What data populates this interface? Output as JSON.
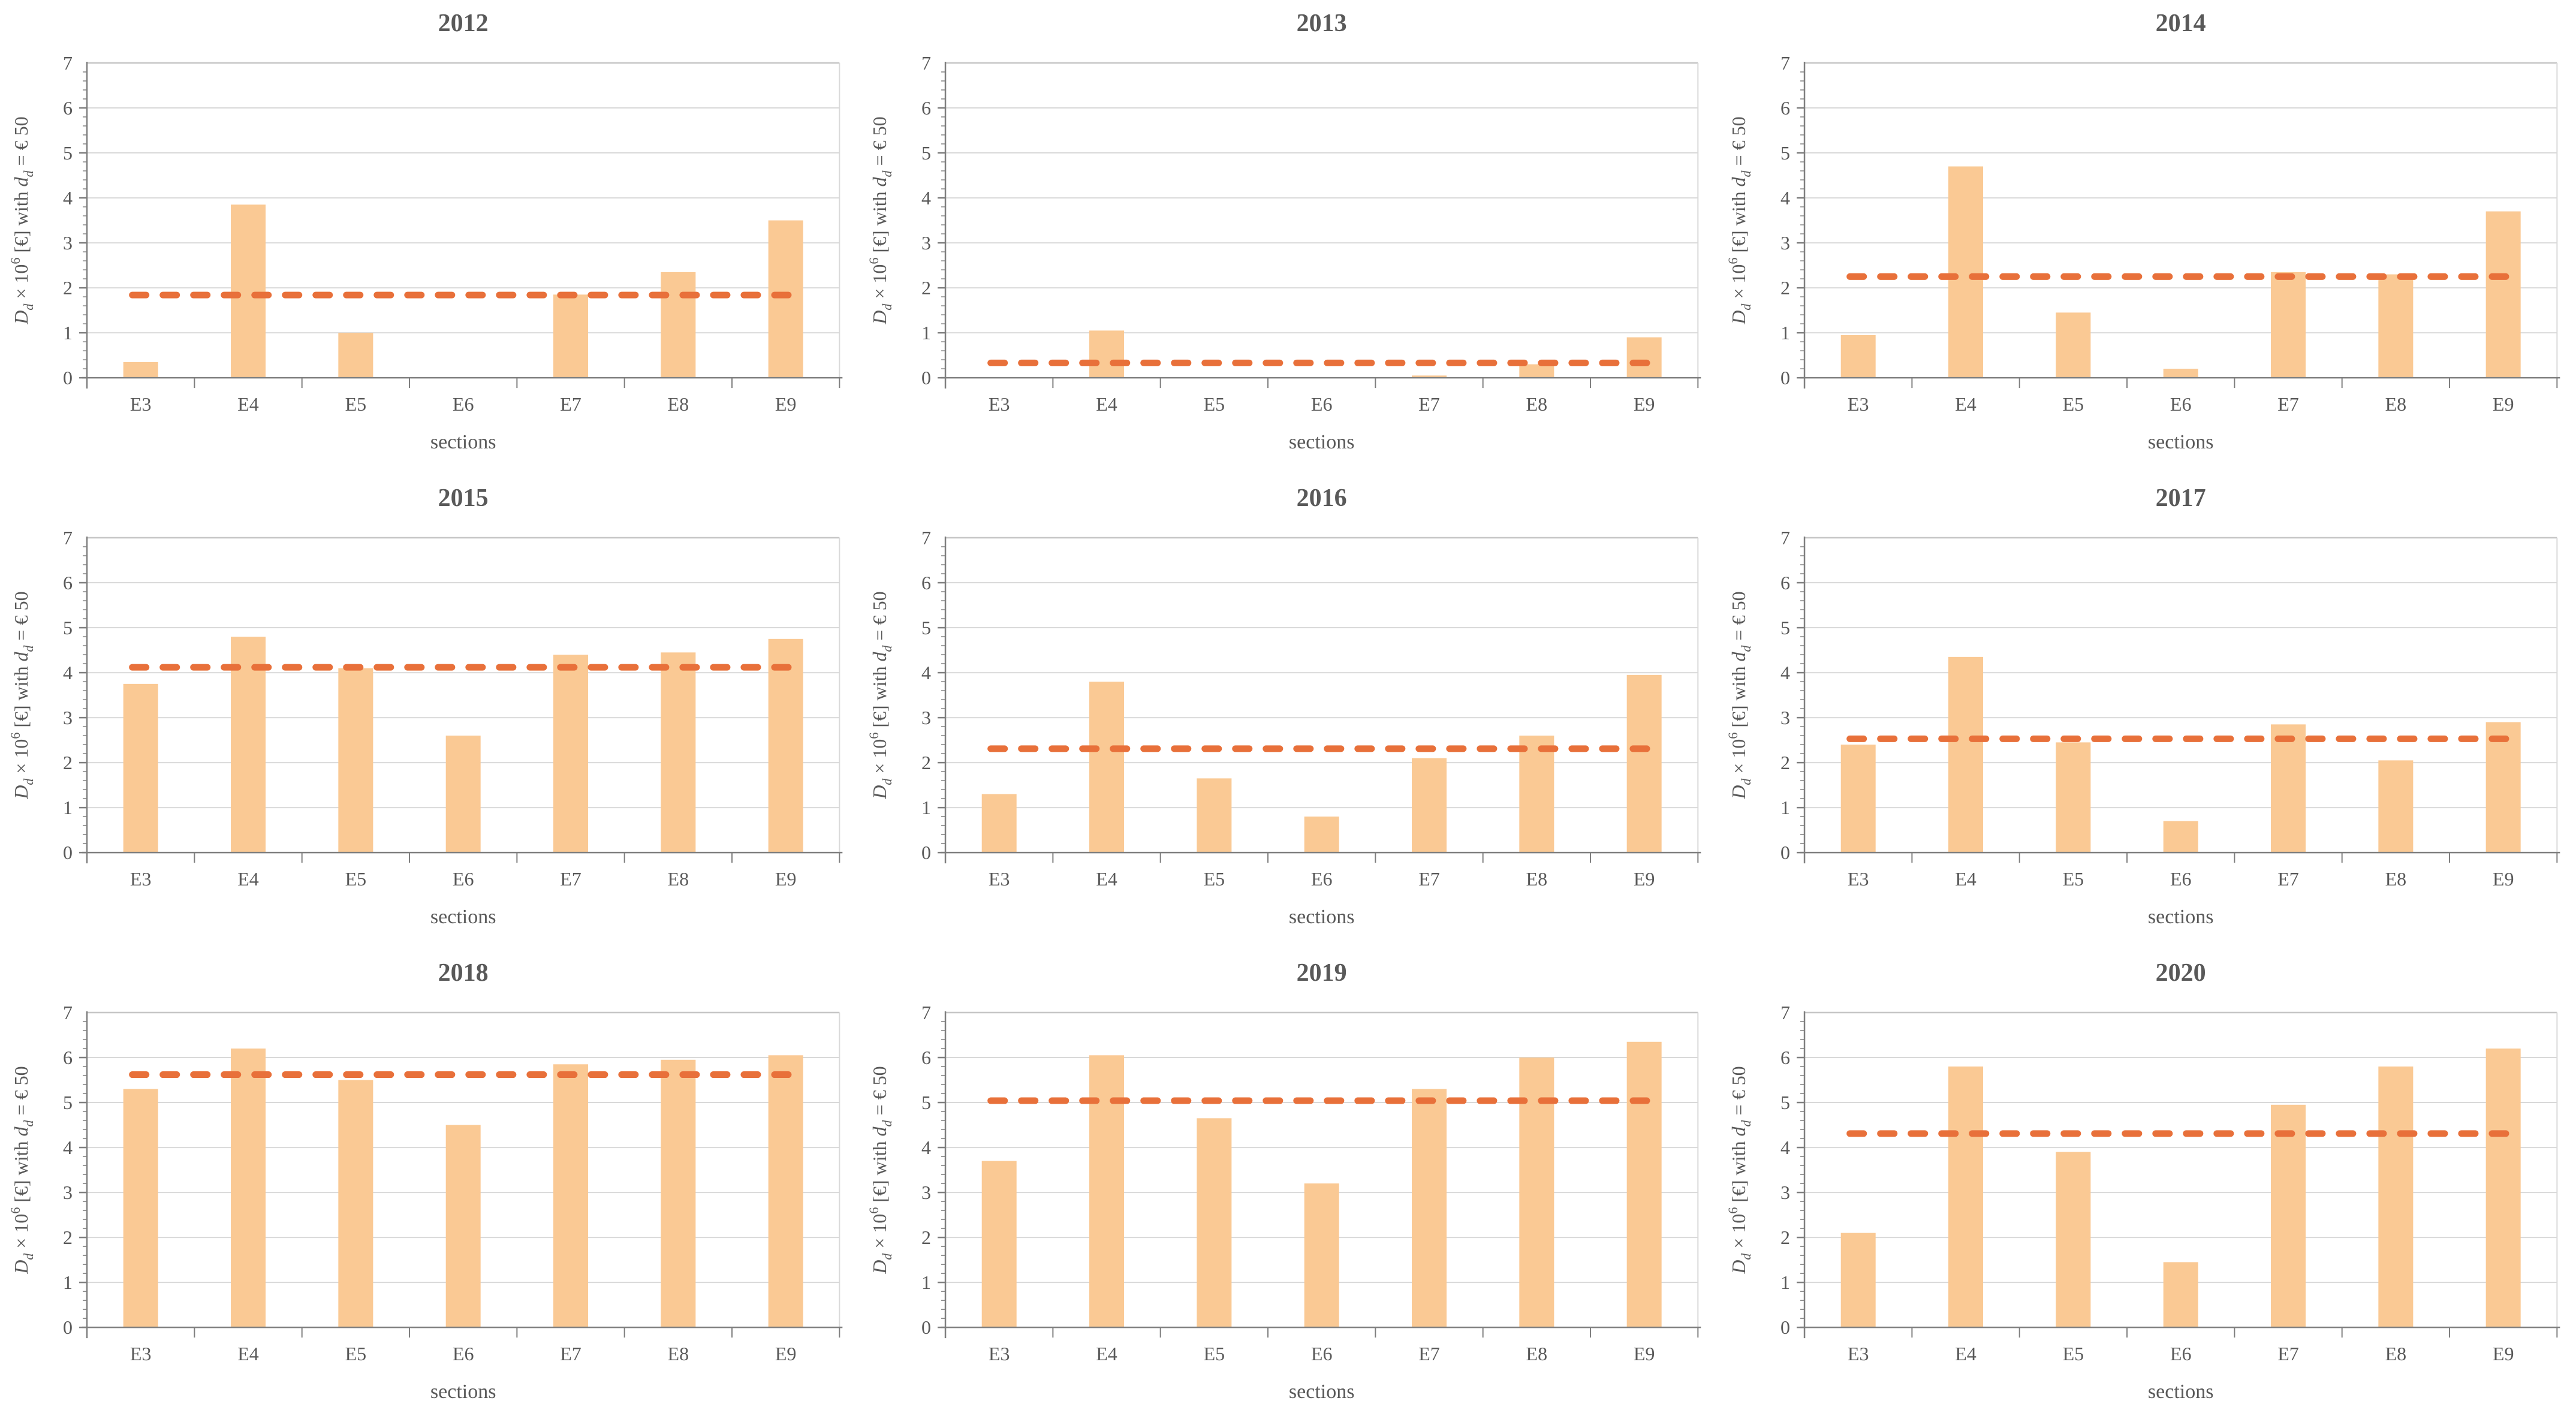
{
  "figure": {
    "xlabel": "sections",
    "ylabel": "D_d × 10^6 [€] with d_d = € 50",
    "ylabel_parts": [
      {
        "t": "D",
        "style": "italic"
      },
      {
        "t": "d",
        "style": "sub-italic"
      },
      {
        "t": " × 10",
        "style": "normal"
      },
      {
        "t": "6",
        "style": "sup"
      },
      {
        "t": " [€] with ",
        "style": "normal"
      },
      {
        "t": "d",
        "style": "italic"
      },
      {
        "t": "d",
        "style": "sub-italic"
      },
      {
        "t": " = € 50",
        "style": "normal"
      }
    ],
    "categories": [
      "E3",
      "E4",
      "E5",
      "E6",
      "E7",
      "E8",
      "E9"
    ],
    "ylim": [
      0,
      7
    ],
    "yticks": [
      0,
      1,
      2,
      3,
      4,
      5,
      6,
      7
    ],
    "legend": "none",
    "grid": "horizontal",
    "colors": {
      "bar": "#FAC994",
      "mean_line": "#E8703A",
      "text": "#595959",
      "grid_line": "#D9D9D9",
      "axis": "#7F7F7F",
      "border": "#C6C6C6"
    }
  },
  "chart_data": [
    {
      "type": "bar",
      "title": "2012",
      "categories": [
        "E3",
        "E4",
        "E5",
        "E6",
        "E7",
        "E8",
        "E9"
      ],
      "values": [
        0.35,
        3.85,
        1.0,
        0.0,
        1.85,
        2.35,
        3.5
      ],
      "mean_line": 1.84,
      "xlabel": "sections",
      "ylabel": "D_d × 10^6 [€] with d_d = € 50",
      "ylim": [
        0,
        7
      ]
    },
    {
      "type": "bar",
      "title": "2013",
      "categories": [
        "E3",
        "E4",
        "E5",
        "E6",
        "E7",
        "E8",
        "E9"
      ],
      "values": [
        0.0,
        1.05,
        0.0,
        0.0,
        0.05,
        0.3,
        0.9
      ],
      "mean_line": 0.33,
      "xlabel": "sections",
      "ylabel": "D_d × 10^6 [€] with d_d = € 50",
      "ylim": [
        0,
        7
      ]
    },
    {
      "type": "bar",
      "title": "2014",
      "categories": [
        "E3",
        "E4",
        "E5",
        "E6",
        "E7",
        "E8",
        "E9"
      ],
      "values": [
        0.95,
        4.7,
        1.45,
        0.2,
        2.35,
        2.3,
        3.7
      ],
      "mean_line": 2.25,
      "xlabel": "sections",
      "ylabel": "D_d × 10^6 [€] with d_d = € 50",
      "ylim": [
        0,
        7
      ]
    },
    {
      "type": "bar",
      "title": "2015",
      "categories": [
        "E3",
        "E4",
        "E5",
        "E6",
        "E7",
        "E8",
        "E9"
      ],
      "values": [
        3.75,
        4.8,
        4.1,
        2.6,
        4.4,
        4.45,
        4.75
      ],
      "mean_line": 4.12,
      "xlabel": "sections",
      "ylabel": "D_d × 10^6 [€] with d_d = € 50",
      "ylim": [
        0,
        7
      ]
    },
    {
      "type": "bar",
      "title": "2016",
      "categories": [
        "E3",
        "E4",
        "E5",
        "E6",
        "E7",
        "E8",
        "E9"
      ],
      "values": [
        1.3,
        3.8,
        1.65,
        0.8,
        2.1,
        2.6,
        3.95
      ],
      "mean_line": 2.31,
      "xlabel": "sections",
      "ylabel": "D_d × 10^6 [€] with d_d = € 50",
      "ylim": [
        0,
        7
      ]
    },
    {
      "type": "bar",
      "title": "2017",
      "categories": [
        "E3",
        "E4",
        "E5",
        "E6",
        "E7",
        "E8",
        "E9"
      ],
      "values": [
        2.4,
        4.35,
        2.45,
        0.7,
        2.85,
        2.05,
        2.9
      ],
      "mean_line": 2.53,
      "xlabel": "sections",
      "ylabel": "D_d × 10^6 [€] with d_d = € 50",
      "ylim": [
        0,
        7
      ]
    },
    {
      "type": "bar",
      "title": "2018",
      "categories": [
        "E3",
        "E4",
        "E5",
        "E6",
        "E7",
        "E8",
        "E9"
      ],
      "values": [
        5.3,
        6.2,
        5.5,
        4.5,
        5.85,
        5.95,
        6.05
      ],
      "mean_line": 5.62,
      "xlabel": "sections",
      "ylabel": "D_d × 10^6 [€] with d_d = € 50",
      "ylim": [
        0,
        7
      ]
    },
    {
      "type": "bar",
      "title": "2019",
      "categories": [
        "E3",
        "E4",
        "E5",
        "E6",
        "E7",
        "E8",
        "E9"
      ],
      "values": [
        3.7,
        6.05,
        4.65,
        3.2,
        5.3,
        6.0,
        6.35
      ],
      "mean_line": 5.04,
      "xlabel": "sections",
      "ylabel": "D_d × 10^6 [€] with d_d = € 50",
      "ylim": [
        0,
        7
      ]
    },
    {
      "type": "bar",
      "title": "2020",
      "categories": [
        "E3",
        "E4",
        "E5",
        "E6",
        "E7",
        "E8",
        "E9"
      ],
      "values": [
        2.1,
        5.8,
        3.9,
        1.45,
        4.95,
        5.8,
        6.2
      ],
      "mean_line": 4.31,
      "xlabel": "sections",
      "ylabel": "D_d × 10^6 [€] with d_d = € 50",
      "ylim": [
        0,
        7
      ]
    }
  ]
}
